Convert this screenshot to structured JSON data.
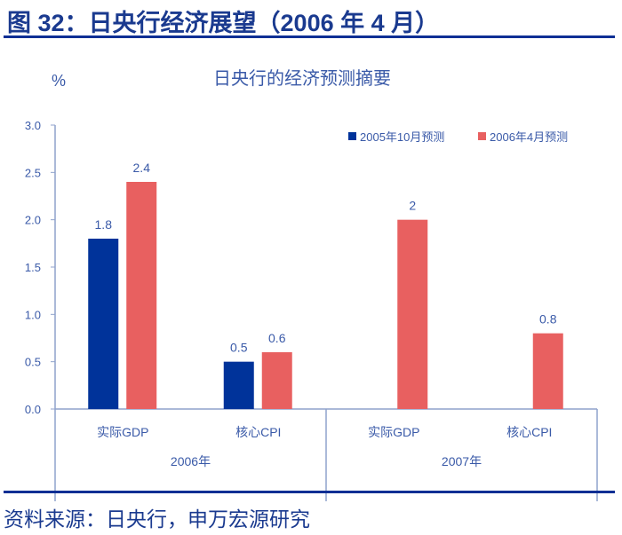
{
  "header": {
    "title": "图 32：日央行经济展望（2006 年 4 月）"
  },
  "footer": {
    "source": "资料来源：日央行，申万宏源研究"
  },
  "colors": {
    "series1": "#00339a",
    "series2": "#e86060",
    "axis": "#8fa2cc",
    "text": "#3a5aa8"
  },
  "chart_data": {
    "type": "bar",
    "title": "日央行的经济预测摘要",
    "ylabel": "%",
    "ylim": [
      0,
      3.0
    ],
    "yticks": [
      "0.0",
      "0.5",
      "1.0",
      "1.5",
      "2.0",
      "2.5",
      "3.0"
    ],
    "groups": [
      "2006年",
      "2007年"
    ],
    "categories": [
      "实际GDP",
      "核心CPI",
      "实际GDP",
      "核心CPI"
    ],
    "legend_position": "top-right",
    "grid": false,
    "series": [
      {
        "name": "2005年10月预测",
        "values": [
          1.8,
          0.5,
          null,
          null
        ],
        "labels": [
          "1.8",
          "0.5",
          "",
          ""
        ]
      },
      {
        "name": "2006年4月预测",
        "values": [
          2.4,
          0.6,
          2,
          0.8
        ],
        "labels": [
          "2.4",
          "0.6",
          "2",
          "0.8"
        ]
      }
    ]
  }
}
